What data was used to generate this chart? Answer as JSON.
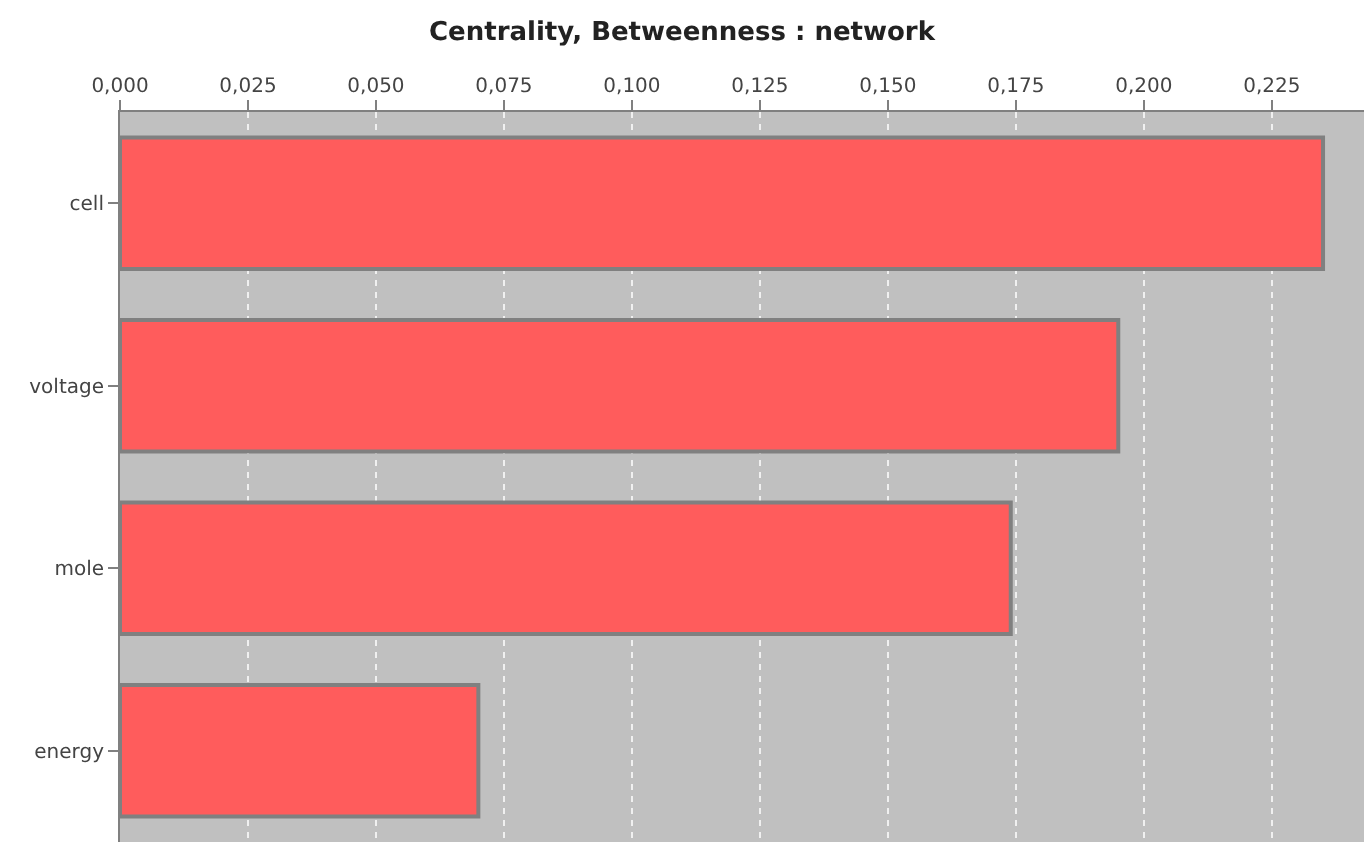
{
  "chart_data": {
    "type": "bar",
    "orientation": "horizontal",
    "title": "Centrality, Betweenness : network",
    "categories": [
      "cell",
      "voltage",
      "mole",
      "energy"
    ],
    "values": [
      0.235,
      0.195,
      0.174,
      0.07
    ],
    "color": "#ff5c5c",
    "xlim": [
      0,
      0.243
    ],
    "xticks": [
      {
        "value": 0,
        "label": "0,000"
      },
      {
        "value": 0.025,
        "label": "0,025"
      },
      {
        "value": 0.05,
        "label": "0,050"
      },
      {
        "value": 0.075,
        "label": "0,075"
      },
      {
        "value": 0.1,
        "label": "0,100"
      },
      {
        "value": 0.125,
        "label": "0,125"
      },
      {
        "value": 0.15,
        "label": "0,150"
      },
      {
        "value": 0.175,
        "label": "0,175"
      },
      {
        "value": 0.2,
        "label": "0,200"
      },
      {
        "value": 0.225,
        "label": "0,225"
      }
    ],
    "grid": "x",
    "legend": false
  }
}
